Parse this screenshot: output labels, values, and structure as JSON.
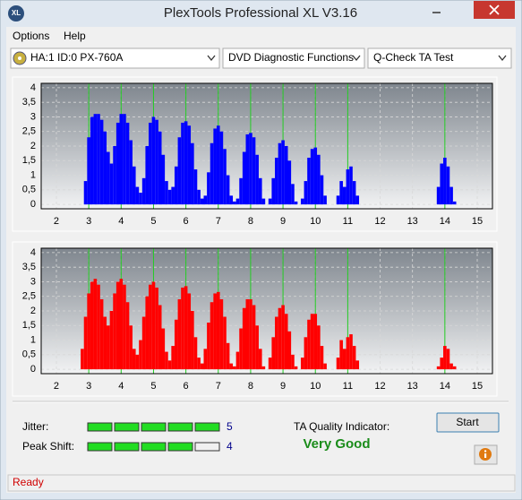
{
  "window": {
    "title": "PlexTools Professional XL V3.16",
    "icon": "XL"
  },
  "menu": [
    "Options",
    "Help"
  ],
  "toolbar": {
    "drive": "HA:1 ID:0  PX-760A",
    "function": "DVD Diagnostic Functions",
    "test": "Q-Check TA Test"
  },
  "chart_data": [
    {
      "type": "bar",
      "color": "#0000ff",
      "x": [
        2.8,
        2.9,
        3.0,
        3.1,
        3.2,
        3.3,
        3.4,
        3.5,
        3.6,
        3.7,
        3.8,
        3.9,
        4.0,
        4.1,
        4.2,
        4.3,
        4.4,
        4.5,
        4.6,
        4.7,
        4.8,
        4.9,
        5.0,
        5.1,
        5.2,
        5.3,
        5.4,
        5.5,
        5.6,
        5.7,
        5.8,
        5.9,
        6.0,
        6.1,
        6.2,
        6.3,
        6.4,
        6.5,
        6.6,
        6.7,
        6.8,
        6.9,
        7.0,
        7.1,
        7.2,
        7.3,
        7.4,
        7.5,
        7.6,
        7.7,
        7.8,
        7.9,
        8.0,
        8.1,
        8.2,
        8.3,
        8.4,
        8.5,
        8.6,
        8.7,
        8.8,
        8.9,
        9.0,
        9.1,
        9.2,
        9.3,
        9.4,
        9.5,
        9.6,
        9.7,
        9.8,
        9.9,
        10.0,
        10.1,
        10.2,
        10.3,
        10.4,
        10.5,
        10.6,
        10.7,
        10.8,
        10.9,
        11.0,
        11.1,
        11.2,
        11.3,
        11.4,
        11.5,
        11.6,
        11.7,
        11.8,
        11.9,
        12.0,
        12.1,
        12.2,
        12.3,
        12.4,
        12.5,
        12.6,
        12.7,
        12.8,
        12.9,
        13.0,
        13.1,
        13.2,
        13.3,
        13.4,
        13.5,
        13.6,
        13.7,
        13.8,
        13.9,
        14.0,
        14.1,
        14.2,
        14.3,
        14.4
      ],
      "values": [
        0,
        0.8,
        2.3,
        3.0,
        3.1,
        3.1,
        2.9,
        2.5,
        1.8,
        1.4,
        2.0,
        2.8,
        3.1,
        3.1,
        2.8,
        2.2,
        1.3,
        0.6,
        0.4,
        0.9,
        2.0,
        2.8,
        3.0,
        2.9,
        2.5,
        1.7,
        0.8,
        0.5,
        0.6,
        1.3,
        2.3,
        2.8,
        2.85,
        2.7,
        2.1,
        1.2,
        0.5,
        0.2,
        0.3,
        1.1,
        2.1,
        2.6,
        2.7,
        2.5,
        1.9,
        1.0,
        0.3,
        0.1,
        0.2,
        0.9,
        1.8,
        2.4,
        2.45,
        2.3,
        1.7,
        0.9,
        0.2,
        0,
        0.2,
        0.9,
        1.6,
        2.1,
        2.2,
        2.0,
        1.5,
        0.7,
        0.1,
        0,
        0.2,
        0.8,
        1.6,
        1.9,
        1.95,
        1.7,
        1.0,
        0.3,
        0,
        0,
        0,
        0.3,
        0.8,
        0.6,
        1.2,
        1.3,
        0.8,
        0.3,
        0,
        0,
        0,
        0,
        0,
        0,
        0,
        0,
        0,
        0,
        0,
        0,
        0,
        0,
        0,
        0,
        0,
        0,
        0,
        0,
        0,
        0,
        0,
        0,
        0.6,
        1.4,
        1.6,
        1.3,
        0.6,
        0.1,
        0
      ],
      "xlim": [
        1.53,
        15.47
      ],
      "xticks": [
        2,
        3,
        4,
        5,
        6,
        7,
        8,
        9,
        10,
        11,
        12,
        13,
        14,
        15
      ],
      "ylim": [
        -0.15,
        4.15
      ],
      "yticks": [
        0,
        {
          "value": 0.5,
          "label": "0,5"
        },
        1,
        {
          "value": 1.5,
          "label": "1,5"
        },
        2,
        {
          "value": 2.5,
          "label": "2,5"
        },
        3,
        {
          "value": 3.5,
          "label": "3,5"
        },
        4
      ],
      "reference_lines": [
        3,
        4,
        5,
        6,
        7,
        8,
        9,
        10,
        11,
        14
      ],
      "reference_color": "#22cc22",
      "grid": true
    },
    {
      "type": "bar",
      "color": "#ff0000",
      "x": [
        2.8,
        2.9,
        3.0,
        3.1,
        3.2,
        3.3,
        3.4,
        3.5,
        3.6,
        3.7,
        3.8,
        3.9,
        4.0,
        4.1,
        4.2,
        4.3,
        4.4,
        4.5,
        4.6,
        4.7,
        4.8,
        4.9,
        5.0,
        5.1,
        5.2,
        5.3,
        5.4,
        5.5,
        5.6,
        5.7,
        5.8,
        5.9,
        6.0,
        6.1,
        6.2,
        6.3,
        6.4,
        6.5,
        6.6,
        6.7,
        6.8,
        6.9,
        7.0,
        7.1,
        7.2,
        7.3,
        7.4,
        7.5,
        7.6,
        7.7,
        7.8,
        7.9,
        8.0,
        8.1,
        8.2,
        8.3,
        8.4,
        8.5,
        8.6,
        8.7,
        8.8,
        8.9,
        9.0,
        9.1,
        9.2,
        9.3,
        9.4,
        9.5,
        9.6,
        9.7,
        9.8,
        9.9,
        10.0,
        10.1,
        10.2,
        10.3,
        10.4,
        10.5,
        10.6,
        10.7,
        10.8,
        10.9,
        11.0,
        11.1,
        11.2,
        11.3,
        11.4,
        11.5,
        11.6,
        11.7,
        11.8,
        11.9,
        12.0,
        12.1,
        12.2,
        12.3,
        12.4,
        12.5,
        12.6,
        12.7,
        12.8,
        12.9,
        13.0,
        13.1,
        13.2,
        13.3,
        13.4,
        13.5,
        13.6,
        13.7,
        13.8,
        13.9,
        14.0,
        14.1,
        14.2,
        14.3,
        14.4
      ],
      "values": [
        0.7,
        1.8,
        2.6,
        3.0,
        3.1,
        2.9,
        2.4,
        1.8,
        1.5,
        2.0,
        2.6,
        3.0,
        3.1,
        2.9,
        2.3,
        1.5,
        0.7,
        0.5,
        1.0,
        1.8,
        2.5,
        2.9,
        3.0,
        2.8,
        2.2,
        1.4,
        0.6,
        0.3,
        0.8,
        1.7,
        2.4,
        2.8,
        2.85,
        2.6,
        2.0,
        1.1,
        0.4,
        0.2,
        0.7,
        1.6,
        2.3,
        2.6,
        2.65,
        2.4,
        1.8,
        0.9,
        0.2,
        0.1,
        0.6,
        1.4,
        2.1,
        2.4,
        2.4,
        2.2,
        1.5,
        0.7,
        0.1,
        0,
        0.4,
        1.1,
        1.8,
        2.1,
        2.2,
        1.9,
        1.3,
        0.5,
        0.1,
        0,
        0.4,
        1.1,
        1.7,
        1.9,
        1.9,
        1.5,
        0.8,
        0.2,
        0,
        0,
        0,
        0.4,
        1.0,
        0.7,
        1.1,
        1.2,
        0.8,
        0.3,
        0,
        0,
        0,
        0,
        0,
        0,
        0,
        0,
        0,
        0,
        0,
        0,
        0,
        0,
        0,
        0,
        0,
        0,
        0,
        0,
        0,
        0,
        0,
        0,
        0.1,
        0.4,
        0.8,
        0.7,
        0.2,
        0.1,
        0
      ],
      "xlim": [
        1.53,
        15.47
      ],
      "xticks": [
        2,
        3,
        4,
        5,
        6,
        7,
        8,
        9,
        10,
        11,
        12,
        13,
        14,
        15
      ],
      "ylim": [
        -0.15,
        4.15
      ],
      "yticks": [
        0,
        {
          "value": 0.5,
          "label": "0,5"
        },
        1,
        {
          "value": 1.5,
          "label": "1,5"
        },
        2,
        {
          "value": 2.5,
          "label": "2,5"
        },
        3,
        {
          "value": 3.5,
          "label": "3,5"
        },
        4
      ],
      "reference_lines": [
        3,
        4,
        5,
        6,
        7,
        8,
        9,
        10,
        11,
        14
      ],
      "reference_color": "#22cc22",
      "grid": true
    }
  ],
  "indicators": {
    "jitter_label": "Jitter:",
    "jitter": 5,
    "peak_shift_label": "Peak Shift:",
    "peak_shift": 4,
    "ta_label": "TA Quality Indicator:",
    "ta_result": "Very Good"
  },
  "buttons": {
    "start": "Start"
  },
  "status": "Ready"
}
